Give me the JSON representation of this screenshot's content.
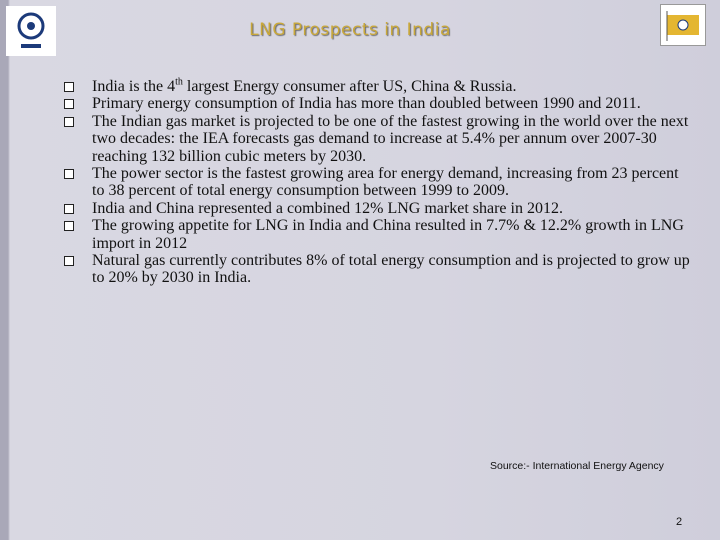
{
  "header": {
    "title": "LNG Prospects in India"
  },
  "bullets": [
    {
      "text": "India is the 4",
      "sup": "th",
      "rest": " largest Energy consumer after US, China & Russia."
    },
    {
      "text": "Primary energy consumption of India has more than doubled between 1990 and 2011."
    },
    {
      "text": "The Indian gas market is projected to be one of the fastest growing in the world over the next two decades: the IEA forecasts gas demand to increase at 5.4% per annum over 2007-30 reaching 132 billion cubic meters by 2030."
    },
    {
      "text": "The power sector is the fastest growing area for energy demand, increasing from 23 percent to 38 percent of total energy consumption between 1999 to 2009."
    },
    {
      "text": "India and China represented a combined 12% LNG market share in 2012."
    },
    {
      "text": "The growing appetite for LNG in India and China resulted in 7.7% & 12.2% growth in LNG import in 2012"
    },
    {
      "text": "Natural gas currently contributes 8% of total energy consumption and is projected to grow up to 20% by 2030 in India."
    }
  ],
  "footer": {
    "source": "Source:- International Energy Agency",
    "page": "2"
  }
}
